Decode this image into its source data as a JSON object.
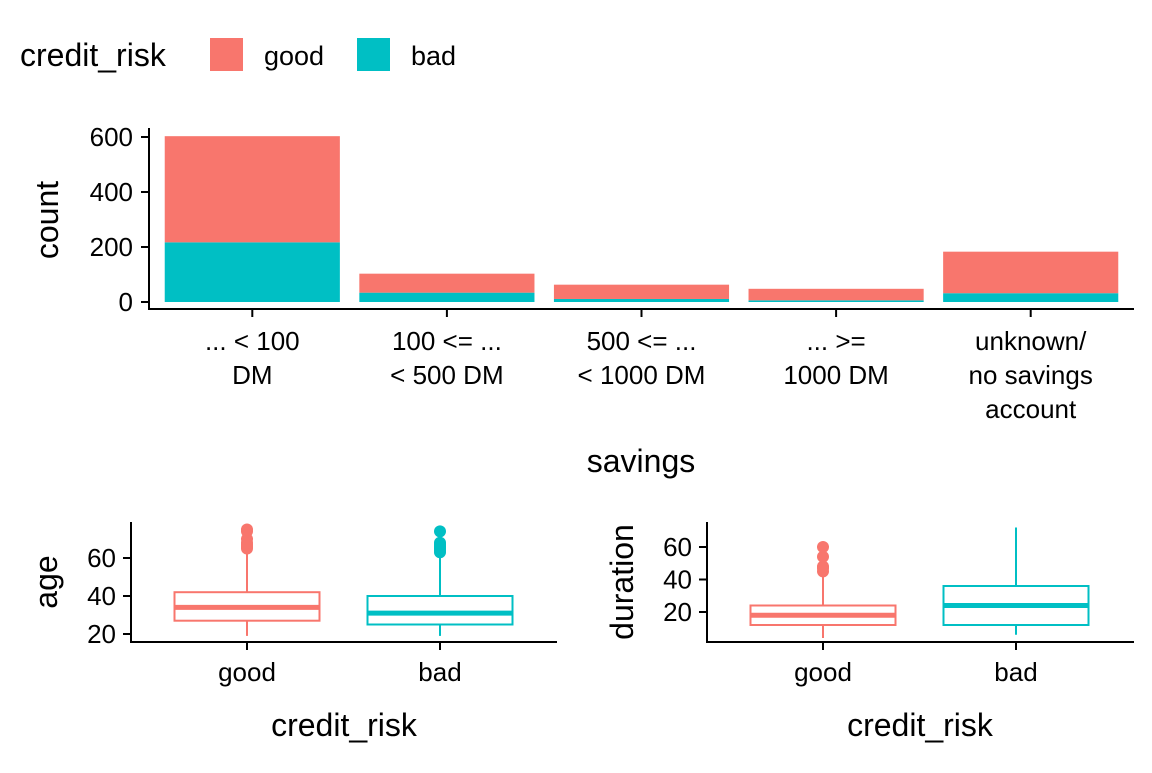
{
  "legend": {
    "title": "credit_risk",
    "items": [
      {
        "label": "good",
        "color": "#F8766D"
      },
      {
        "label": "bad",
        "color": "#00BFC4"
      }
    ],
    "placement": "top-left"
  },
  "chart_data": [
    {
      "type": "bar",
      "stacked": true,
      "xlabel": "savings",
      "ylabel": "count",
      "ylim": [
        0,
        620
      ],
      "yticks": [
        0,
        200,
        400,
        600
      ],
      "categories": [
        [
          "... < 100",
          "DM"
        ],
        [
          "100 <= ...",
          "< 500 DM"
        ],
        [
          "500 <= ...",
          "< 1000 DM"
        ],
        [
          "... >=",
          "1000 DM"
        ],
        [
          "unknown/",
          "no savings",
          "account"
        ]
      ],
      "series": [
        {
          "name": "bad",
          "color": "#00BFC4",
          "values": [
            217,
            34,
            11,
            6,
            32
          ]
        },
        {
          "name": "good",
          "color": "#F8766D",
          "values": [
            386,
            69,
            52,
            42,
            151
          ]
        }
      ],
      "grid": false
    },
    {
      "type": "box",
      "xlabel": "credit_risk",
      "ylabel": "age",
      "ylim": [
        16,
        78
      ],
      "yticks": [
        20,
        40,
        60
      ],
      "categories": [
        "good",
        "bad"
      ],
      "boxes": [
        {
          "name": "good",
          "color": "#F8766D",
          "min": 19,
          "q1": 27,
          "median": 34,
          "q3": 42,
          "max": 64,
          "outliers": [
            65,
            66,
            67,
            68,
            70,
            74,
            75
          ]
        },
        {
          "name": "bad",
          "color": "#00BFC4",
          "min": 19,
          "q1": 25,
          "median": 31,
          "q3": 40,
          "max": 62,
          "outliers": [
            63,
            64,
            65,
            66,
            67,
            68,
            74
          ]
        }
      ],
      "grid": false
    },
    {
      "type": "box",
      "xlabel": "credit_risk",
      "ylabel": "duration",
      "ylim": [
        2,
        76
      ],
      "yticks": [
        20,
        40,
        60
      ],
      "categories": [
        "good",
        "bad"
      ],
      "boxes": [
        {
          "name": "good",
          "color": "#F8766D",
          "min": 4,
          "q1": 12,
          "median": 18,
          "q3": 24,
          "max": 42,
          "outliers": [
            45,
            47,
            48,
            54,
            60
          ]
        },
        {
          "name": "bad",
          "color": "#00BFC4",
          "min": 6,
          "q1": 12,
          "median": 24,
          "q3": 36,
          "max": 72,
          "outliers": []
        }
      ],
      "grid": false
    }
  ]
}
